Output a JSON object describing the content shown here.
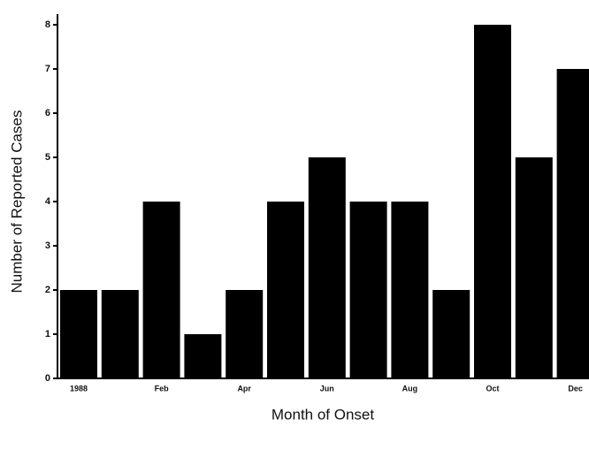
{
  "chart_data": {
    "type": "bar",
    "x_label": "Month of Onset",
    "y_label": "Number of Reported Cases",
    "categories": [
      "1988",
      null,
      "Feb",
      null,
      "Apr",
      null,
      "Jun",
      null,
      "Aug",
      null,
      "Oct",
      null,
      "Dec"
    ],
    "values": [
      2,
      2,
      4,
      1,
      2,
      4,
      5,
      4,
      4,
      2,
      8,
      5,
      7
    ],
    "color": "#000000",
    "ylim": [
      0,
      8
    ],
    "yticks": [
      0,
      1,
      2,
      3,
      4,
      5,
      6,
      7,
      8
    ],
    "grid": false
  }
}
